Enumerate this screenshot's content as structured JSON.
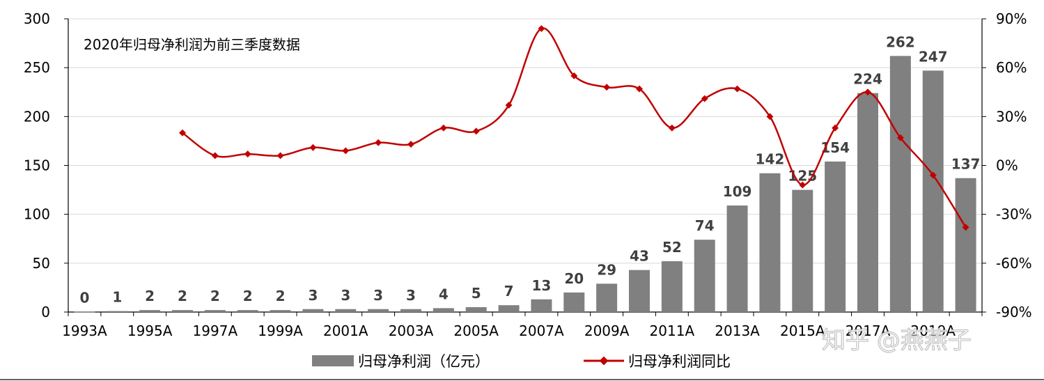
{
  "chart_data": {
    "type": "bar+line",
    "note": "2020年归母净利润为前三季度数据",
    "categories": [
      "1993A",
      "1994A",
      "1995A",
      "1996A",
      "1997A",
      "1998A",
      "1999A",
      "2000A",
      "2001A",
      "2002A",
      "2003A",
      "2004A",
      "2005A",
      "2006A",
      "2007A",
      "2008A",
      "2009A",
      "2010A",
      "2011A",
      "2012A",
      "2013A",
      "2014A",
      "2015A",
      "2016A",
      "2017A",
      "2018A",
      "2019A",
      "2020A"
    ],
    "x_tick_labels": [
      "1993A",
      "1995A",
      "1997A",
      "1999A",
      "2001A",
      "2003A",
      "2005A",
      "2007A",
      "2009A",
      "2011A",
      "2013A",
      "2015A",
      "2017A",
      "2019A"
    ],
    "series": [
      {
        "name": "归母净利润（亿元）",
        "type": "bar",
        "axis": "left",
        "color": "#808080",
        "values": [
          0.3,
          1,
          2,
          2,
          2,
          2,
          2,
          3,
          3,
          3,
          3,
          4,
          5,
          7,
          13,
          20,
          29,
          43,
          52,
          74,
          109,
          142,
          125,
          154,
          224,
          262,
          247,
          137
        ],
        "labels": [
          "0",
          "1",
          "2",
          "2",
          "2",
          "2",
          "2",
          "3",
          "3",
          "3",
          "3",
          "4",
          "5",
          "7",
          "13",
          "20",
          "29",
          "43",
          "52",
          "74",
          "109",
          "142",
          "125",
          "154",
          "224",
          "262",
          "247",
          "137"
        ]
      },
      {
        "name": "归母净利润同比",
        "type": "line",
        "axis": "right",
        "color": "#c00000",
        "values": [
          null,
          null,
          null,
          20,
          6,
          7,
          6,
          11,
          9,
          14,
          13,
          23,
          21,
          37,
          84,
          55,
          48,
          47,
          23,
          41,
          47,
          30,
          -12,
          23,
          45,
          17,
          -6,
          -38
        ]
      }
    ],
    "left_axis": {
      "ylim": [
        0,
        300
      ],
      "ticks": [
        "0",
        "50",
        "100",
        "150",
        "200",
        "250",
        "300"
      ]
    },
    "right_axis": {
      "ylim": [
        -90,
        90
      ],
      "ticks": [
        "-90%",
        "-60%",
        "-30%",
        "0%",
        "30%",
        "60%",
        "90%"
      ]
    },
    "legend_position": "bottom",
    "grid": true
  },
  "watermark": "知乎 @燕燕子"
}
